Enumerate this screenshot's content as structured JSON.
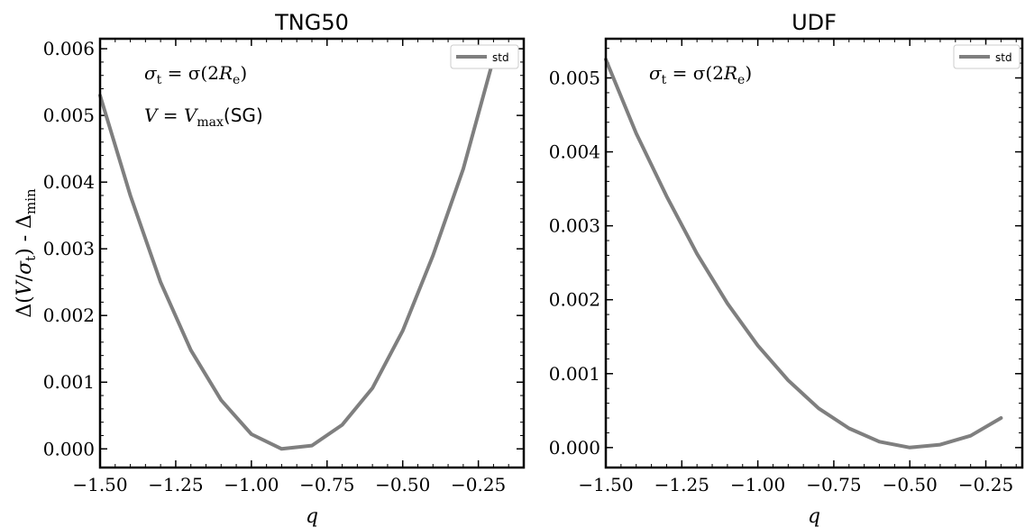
{
  "chart_data": [
    {
      "type": "line",
      "title": "TNG50",
      "xlabel": "q",
      "ylabel": "Δ(V/σ_t) - Δ_min",
      "xlim": [
        -1.5,
        -0.1
      ],
      "ylim": [
        -0.00028,
        0.00615
      ],
      "xticks": [
        -1.5,
        -1.25,
        -1.0,
        -0.75,
        -0.5,
        -0.25
      ],
      "xtick_labels": [
        "−1.50",
        "−1.25",
        "−1.00",
        "−0.75",
        "−0.50",
        "−0.25"
      ],
      "yticks": [
        0,
        0.001,
        0.002,
        0.003,
        0.004,
        0.005,
        0.006
      ],
      "ytick_labels": [
        "0.000",
        "0.001",
        "0.002",
        "0.003",
        "0.004",
        "0.005",
        "0.006"
      ],
      "legend": {
        "entries": [
          "std"
        ],
        "placement": "top-right"
      },
      "annotation": {
        "line1": "σt = σ(2Re)",
        "line2": "V = Vmax(SG)"
      },
      "series": [
        {
          "name": "std",
          "color": "#7f7f7f",
          "x": [
            -1.5,
            -1.4,
            -1.3,
            -1.2,
            -1.1,
            -1.0,
            -0.9,
            -0.8,
            -0.7,
            -0.6,
            -0.5,
            -0.4,
            -0.3,
            -0.2
          ],
          "y": [
            0.0053,
            0.0038,
            0.0025,
            0.00148,
            0.00073,
            0.00022,
            0.0,
            5e-05,
            0.00036,
            0.00091,
            0.00177,
            0.0029,
            0.0042,
            0.00585
          ]
        }
      ]
    },
    {
      "type": "line",
      "title": "UDF",
      "xlabel": "q",
      "ylabel": "",
      "xlim": [
        -1.5,
        -0.13
      ],
      "ylim": [
        -0.00027,
        0.00553
      ],
      "xticks": [
        -1.5,
        -1.25,
        -1.0,
        -0.75,
        -0.5,
        -0.25
      ],
      "xtick_labels": [
        "−1.50",
        "−1.25",
        "−1.00",
        "−0.75",
        "−0.50",
        "−0.25"
      ],
      "yticks": [
        0,
        0.001,
        0.002,
        0.003,
        0.004,
        0.005
      ],
      "ytick_labels": [
        "0.000",
        "0.001",
        "0.002",
        "0.003",
        "0.004",
        "0.005"
      ],
      "legend": {
        "entries": [
          "std"
        ],
        "placement": "top-right"
      },
      "annotation": {
        "line1": "σt = σ(2Re)"
      },
      "series": [
        {
          "name": "std",
          "color": "#7f7f7f",
          "x": [
            -1.5,
            -1.4,
            -1.3,
            -1.2,
            -1.1,
            -1.0,
            -0.9,
            -0.8,
            -0.7,
            -0.6,
            -0.5,
            -0.4,
            -0.3,
            -0.2
          ],
          "y": [
            0.00525,
            0.00425,
            0.0034,
            0.00262,
            0.00195,
            0.00138,
            0.00091,
            0.00053,
            0.00026,
            8e-05,
            0.0,
            4e-05,
            0.00016,
            0.0004
          ]
        }
      ]
    }
  ]
}
